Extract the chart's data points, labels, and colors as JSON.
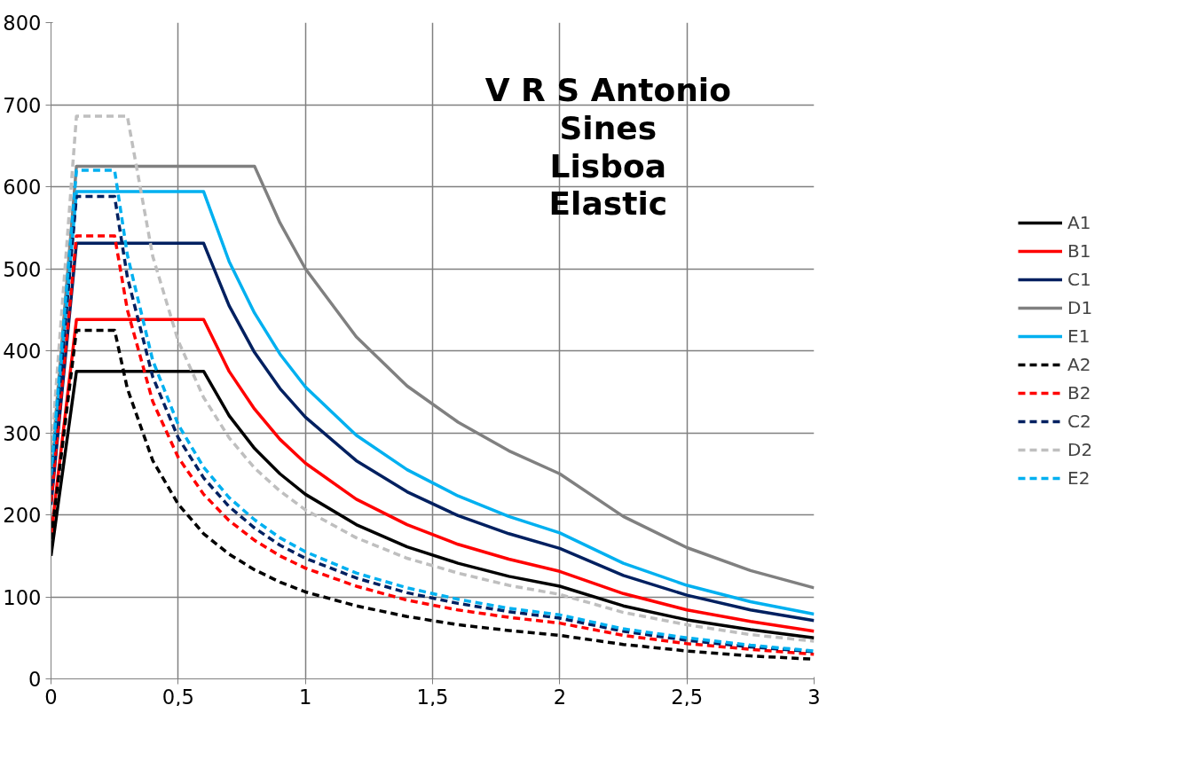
{
  "chart_data": {
    "type": "line",
    "title": "V R S Antonio\nSines\nLisboa\nElastic",
    "x": [
      0,
      0.1,
      0.2,
      0.25,
      0.3,
      0.4,
      0.5,
      0.6,
      0.7,
      0.8,
      0.9,
      1,
      1.2,
      1.4,
      1.6,
      1.8,
      2,
      2.25,
      2.5,
      2.75,
      3
    ],
    "xlim": [
      0,
      3
    ],
    "xticks": [
      0,
      {
        "value": 0.5,
        "label": "0,5"
      },
      1,
      {
        "value": 1.5,
        "label": "1,5"
      },
      2,
      {
        "value": 2.5,
        "label": "2,5"
      },
      3
    ],
    "ylim": [
      0,
      800
    ],
    "yticks": [
      0,
      100,
      200,
      300,
      400,
      500,
      600,
      700,
      800
    ],
    "grid": true,
    "legend": "right",
    "marker": "none",
    "series": [
      {
        "name": "A1",
        "color": "#000000",
        "line_style": "solid",
        "values": [
          150,
          375,
          375,
          375,
          375,
          375,
          375,
          375,
          321,
          281,
          250,
          225,
          188,
          161,
          141,
          125,
          113,
          89,
          72,
          60,
          50
        ]
      },
      {
        "name": "B1",
        "color": "#ff0000",
        "line_style": "solid",
        "values": [
          175,
          438,
          438,
          438,
          438,
          438,
          438,
          438,
          375,
          329,
          292,
          263,
          219,
          188,
          164,
          146,
          131,
          104,
          84,
          70,
          58
        ]
      },
      {
        "name": "C1",
        "color": "#002060",
        "line_style": "solid",
        "values": [
          212,
          531,
          531,
          531,
          531,
          531,
          531,
          531,
          455,
          398,
          354,
          319,
          266,
          228,
          199,
          177,
          159,
          126,
          102,
          84,
          71
        ]
      },
      {
        "name": "D1",
        "color": "#808080",
        "line_style": "solid",
        "values": [
          250,
          625,
          625,
          625,
          625,
          625,
          625,
          625,
          625,
          625,
          556,
          500,
          417,
          357,
          313,
          278,
          250,
          198,
          160,
          132,
          111
        ]
      },
      {
        "name": "E1",
        "color": "#00b0f0",
        "line_style": "solid",
        "values": [
          238,
          594,
          594,
          594,
          594,
          594,
          594,
          594,
          509,
          446,
          396,
          356,
          297,
          255,
          223,
          198,
          178,
          141,
          114,
          94,
          79
        ]
      },
      {
        "name": "A2",
        "color": "#000000",
        "line_style": "dashed",
        "values": [
          170,
          425,
          425,
          425,
          354,
          266,
          213,
          177,
          152,
          133,
          118,
          106,
          89,
          76,
          66,
          59,
          53,
          42,
          34,
          28,
          24
        ]
      },
      {
        "name": "B2",
        "color": "#ff0000",
        "line_style": "dashed",
        "values": [
          216,
          540,
          540,
          540,
          450,
          338,
          270,
          225,
          193,
          169,
          150,
          135,
          113,
          96,
          84,
          75,
          68,
          53,
          43,
          36,
          30
        ]
      },
      {
        "name": "C2",
        "color": "#002060",
        "line_style": "dashed",
        "values": [
          235,
          588,
          588,
          588,
          490,
          368,
          294,
          245,
          210,
          184,
          163,
          147,
          123,
          105,
          92,
          82,
          74,
          58,
          47,
          39,
          33
        ]
      },
      {
        "name": "D2",
        "color": "#bfbfbf",
        "line_style": "dashed",
        "values": [
          274,
          686,
          686,
          686,
          686,
          515,
          412,
          343,
          294,
          257,
          229,
          206,
          172,
          147,
          129,
          114,
          103,
          81,
          66,
          54,
          46
        ]
      },
      {
        "name": "E2",
        "color": "#00b0f0",
        "line_style": "dashed",
        "values": [
          248,
          620,
          620,
          620,
          517,
          388,
          310,
          258,
          221,
          194,
          172,
          155,
          129,
          111,
          97,
          86,
          78,
          61,
          50,
          41,
          34
        ]
      }
    ]
  }
}
